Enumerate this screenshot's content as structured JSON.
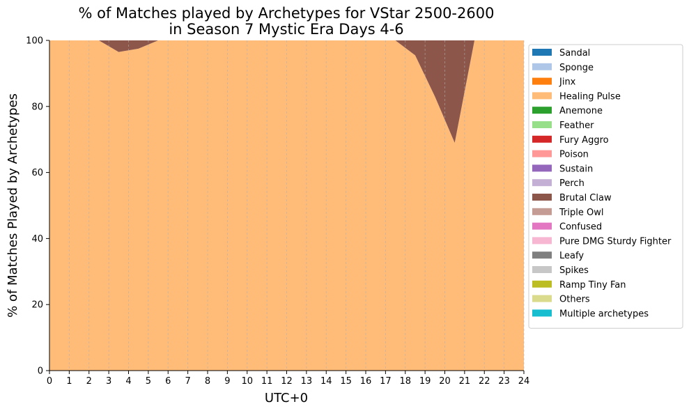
{
  "chart_data": {
    "type": "area",
    "title": "% of Matches played by Archetypes for VStar 2500-2600",
    "subtitle": "in Season 7 Mystic Era Days 4-6",
    "xlabel": "UTC+0",
    "ylabel": "% of Matches Played by Archetypes",
    "xlim": [
      0,
      24
    ],
    "ylim": [
      0,
      100
    ],
    "x_ticks": [
      0,
      1,
      2,
      3,
      4,
      5,
      6,
      7,
      8,
      9,
      10,
      11,
      12,
      13,
      14,
      15,
      16,
      17,
      18,
      19,
      20,
      21,
      22,
      23,
      24
    ],
    "y_ticks": [
      0,
      20,
      40,
      60,
      80,
      100
    ],
    "grid": "vertical dashed",
    "legend_position": "outside-right",
    "x": [
      0.5,
      1.5,
      2.5,
      3.5,
      4.5,
      5.5,
      6.5,
      7.5,
      8.5,
      9.5,
      10.5,
      11.5,
      12.5,
      13.5,
      14.5,
      15.5,
      16.5,
      17.5,
      18.5,
      19.5,
      20.5,
      21.5,
      22.5,
      23.5
    ],
    "series": [
      {
        "name": "Sandal",
        "color": "#1f77b4",
        "values": [
          0,
          0,
          0,
          0,
          0,
          0,
          0,
          0,
          0,
          0,
          0,
          0,
          0,
          0,
          0,
          0,
          0,
          0,
          0,
          0,
          0,
          0,
          0,
          0
        ]
      },
      {
        "name": "Sponge",
        "color": "#aec7e8",
        "values": [
          0,
          0,
          0,
          0,
          0,
          0,
          0,
          0,
          0,
          0,
          0,
          0,
          0,
          0,
          0,
          0,
          0,
          0,
          0,
          0,
          0,
          0,
          0,
          0
        ]
      },
      {
        "name": "Jinx",
        "color": "#ff7f0e",
        "values": [
          0,
          0,
          0,
          0,
          0,
          0,
          0,
          0,
          0,
          0,
          0,
          0,
          0,
          0,
          0,
          0,
          0,
          0,
          0,
          0,
          0,
          0,
          0,
          0
        ]
      },
      {
        "name": "Healing Pulse",
        "color": "#ffbb78",
        "values": [
          100,
          100,
          100,
          96.5,
          97.5,
          100,
          100,
          100,
          100,
          100,
          100,
          100,
          100,
          100,
          100,
          100,
          100,
          100,
          95.5,
          83,
          69,
          100,
          100,
          100
        ]
      },
      {
        "name": "Anemone",
        "color": "#2ca02c",
        "values": [
          0,
          0,
          0,
          0,
          0,
          0,
          0,
          0,
          0,
          0,
          0,
          0,
          0,
          0,
          0,
          0,
          0,
          0,
          0,
          0,
          0,
          0,
          0,
          0
        ]
      },
      {
        "name": "Feather",
        "color": "#98df8a",
        "values": [
          0,
          0,
          0,
          0,
          0,
          0,
          0,
          0,
          0,
          0,
          0,
          0,
          0,
          0,
          0,
          0,
          0,
          0,
          0,
          0,
          0,
          0,
          0,
          0
        ]
      },
      {
        "name": "Fury Aggro",
        "color": "#d62728",
        "values": [
          0,
          0,
          0,
          0,
          0,
          0,
          0,
          0,
          0,
          0,
          0,
          0,
          0,
          0,
          0,
          0,
          0,
          0,
          0,
          0,
          0,
          0,
          0,
          0
        ]
      },
      {
        "name": "Poison",
        "color": "#ff9896",
        "values": [
          0,
          0,
          0,
          0,
          0,
          0,
          0,
          0,
          0,
          0,
          0,
          0,
          0,
          0,
          0,
          0,
          0,
          0,
          0,
          0,
          0,
          0,
          0,
          0
        ]
      },
      {
        "name": "Sustain",
        "color": "#9467bd",
        "values": [
          0,
          0,
          0,
          0,
          0,
          0,
          0,
          0,
          0,
          0,
          0,
          0,
          0,
          0,
          0,
          0,
          0,
          0,
          0,
          0,
          0,
          0,
          0,
          0
        ]
      },
      {
        "name": "Perch",
        "color": "#c5b0d5",
        "values": [
          0,
          0,
          0,
          0,
          0,
          0,
          0,
          0,
          0,
          0,
          0,
          0,
          0,
          0,
          0,
          0,
          0,
          0,
          0,
          0,
          0,
          0,
          0,
          0
        ]
      },
      {
        "name": "Brutal Claw",
        "color": "#8c564b",
        "values": [
          0,
          0,
          0,
          3.5,
          2.5,
          0,
          0,
          0,
          0,
          0,
          0,
          0,
          0,
          0,
          0,
          0,
          0,
          0,
          4.5,
          17,
          31,
          0,
          0,
          0
        ]
      },
      {
        "name": "Triple Owl",
        "color": "#c49c94",
        "values": [
          0,
          0,
          0,
          0,
          0,
          0,
          0,
          0,
          0,
          0,
          0,
          0,
          0,
          0,
          0,
          0,
          0,
          0,
          0,
          0,
          0,
          0,
          0,
          0
        ]
      },
      {
        "name": "Confused",
        "color": "#e377c2",
        "values": [
          0,
          0,
          0,
          0,
          0,
          0,
          0,
          0,
          0,
          0,
          0,
          0,
          0,
          0,
          0,
          0,
          0,
          0,
          0,
          0,
          0,
          0,
          0,
          0
        ]
      },
      {
        "name": "Pure DMG Sturdy Fighter",
        "color": "#f7b6d2",
        "values": [
          0,
          0,
          0,
          0,
          0,
          0,
          0,
          0,
          0,
          0,
          0,
          0,
          0,
          0,
          0,
          0,
          0,
          0,
          0,
          0,
          0,
          0,
          0,
          0
        ]
      },
      {
        "name": "Leafy",
        "color": "#7f7f7f",
        "values": [
          0,
          0,
          0,
          0,
          0,
          0,
          0,
          0,
          0,
          0,
          0,
          0,
          0,
          0,
          0,
          0,
          0,
          0,
          0,
          0,
          0,
          0,
          0,
          0
        ]
      },
      {
        "name": "Spikes",
        "color": "#c7c7c7",
        "values": [
          0,
          0,
          0,
          0,
          0,
          0,
          0,
          0,
          0,
          0,
          0,
          0,
          0,
          0,
          0,
          0,
          0,
          0,
          0,
          0,
          0,
          0,
          0,
          0
        ]
      },
      {
        "name": "Ramp Tiny Fan",
        "color": "#bcbd22",
        "values": [
          0,
          0,
          0,
          0,
          0,
          0,
          0,
          0,
          0,
          0,
          0,
          0,
          0,
          0,
          0,
          0,
          0,
          0,
          0,
          0,
          0,
          0,
          0,
          0
        ]
      },
      {
        "name": "Others",
        "color": "#dbdb8d",
        "values": [
          0,
          0,
          0,
          0,
          0,
          0,
          0,
          0,
          0,
          0,
          0,
          0,
          0,
          0,
          0,
          0,
          0,
          0,
          0,
          0,
          0,
          0,
          0,
          0
        ]
      },
      {
        "name": "Multiple archetypes",
        "color": "#17becf",
        "values": [
          0,
          0,
          0,
          0,
          0,
          0,
          0,
          0,
          0,
          0,
          0,
          0,
          0,
          0,
          0,
          0,
          0,
          0,
          0,
          0,
          0,
          0,
          0,
          0
        ]
      }
    ]
  }
}
